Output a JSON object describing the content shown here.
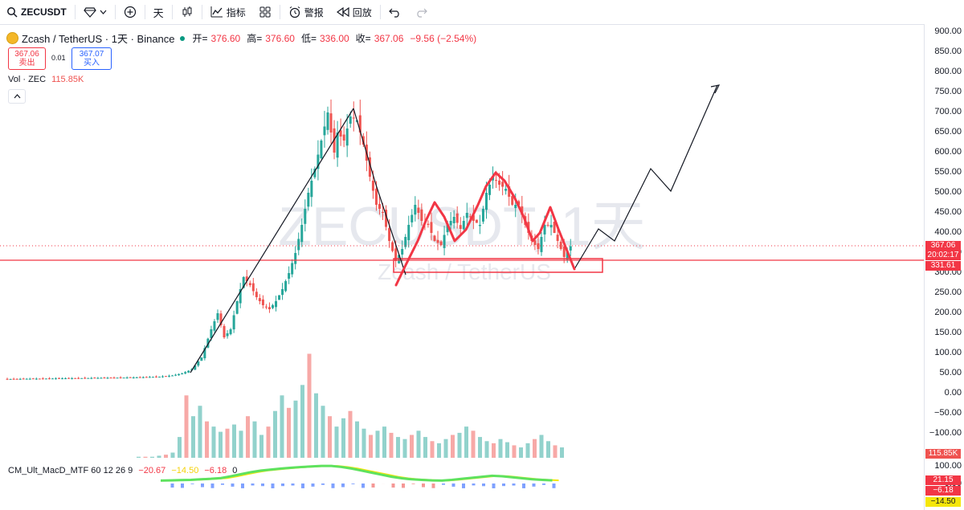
{
  "toolbar": {
    "symbol": "ZECUSDT",
    "interval": "天",
    "indicators_label": "指标",
    "alert_label": "警报",
    "replay_label": "回放"
  },
  "legend": {
    "pair": "Zcash / TetherUS · 1天 · Binance",
    "open_label": "开=",
    "open": "376.60",
    "high_label": "高=",
    "high": "376.60",
    "low_label": "低=",
    "low": "336.00",
    "close_label": "收=",
    "close": "367.06",
    "change": "−9.56 (−2.54%)"
  },
  "trade": {
    "sell_price": "367.06",
    "sell_label": "卖出",
    "spread": "0.01",
    "buy_price": "367.07",
    "buy_label": "买入"
  },
  "volume_legend": {
    "label": "Vol · ZEC",
    "value": "115.85K"
  },
  "macd_legend": {
    "name": "CM_Ult_MacD_MTF 60 12 26 9",
    "v1": "−20.67",
    "v2": "−14.50",
    "v3": "−6.18",
    "v4": "0"
  },
  "watermark": {
    "big": "ZECUSDT, 1天",
    "small": "Zcash / TetherUS"
  },
  "price_axis": {
    "ticks": [
      "900.00",
      "850.00",
      "800.00",
      "750.00",
      "700.00",
      "650.00",
      "600.00",
      "550.00",
      "500.00",
      "450.00",
      "400.00",
      "350.00",
      "300.00",
      "250.00",
      "200.00",
      "150.00",
      "100.00",
      "50.00",
      "0.00",
      "−50.00",
      "−100.00"
    ],
    "current_price": "367.06",
    "countdown": "20:02:17",
    "level_price": "331.61",
    "volume_tag": "115.85K",
    "macd_ticks": [
      "100.00",
      "0.00"
    ],
    "macd_tags": [
      "21.15",
      "−6.18",
      "−14.50"
    ]
  },
  "colors": {
    "up": "#26a69a",
    "down": "#ef5350",
    "drawing": "#f23645",
    "line": "#131722"
  },
  "chart_data": {
    "type": "candlestick",
    "symbol": "ZECUSDT",
    "interval": "1D",
    "ylim": [
      -100,
      900
    ],
    "last": {
      "open": 376.6,
      "high": 376.6,
      "low": 336.0,
      "close": 367.06
    },
    "level": 331.61,
    "price_path": [
      [
        0,
        36
      ],
      [
        10,
        37
      ],
      [
        20,
        38
      ],
      [
        30,
        39
      ],
      [
        40,
        40
      ],
      [
        48,
        42
      ],
      [
        52,
        45
      ],
      [
        55,
        50
      ],
      [
        58,
        60
      ],
      [
        61,
        90
      ],
      [
        64,
        160
      ],
      [
        66,
        200
      ],
      [
        68,
        140
      ],
      [
        70,
        160
      ],
      [
        72,
        230
      ],
      [
        74,
        290
      ],
      [
        76,
        270
      ],
      [
        78,
        240
      ],
      [
        80,
        220
      ],
      [
        82,
        210
      ],
      [
        84,
        230
      ],
      [
        86,
        260
      ],
      [
        88,
        300
      ],
      [
        90,
        350
      ],
      [
        92,
        420
      ],
      [
        94,
        500
      ],
      [
        96,
        560
      ],
      [
        98,
        630
      ],
      [
        100,
        700
      ],
      [
        102,
        600
      ],
      [
        103,
        650
      ],
      [
        105,
        630
      ],
      [
        107,
        690
      ],
      [
        109,
        680
      ],
      [
        111,
        620
      ],
      [
        113,
        540
      ],
      [
        115,
        470
      ],
      [
        117,
        450
      ],
      [
        119,
        380
      ],
      [
        121,
        330
      ],
      [
        123,
        360
      ],
      [
        125,
        420
      ],
      [
        127,
        470
      ],
      [
        129,
        430
      ],
      [
        131,
        420
      ],
      [
        133,
        380
      ],
      [
        135,
        370
      ],
      [
        137,
        420
      ],
      [
        139,
        440
      ],
      [
        141,
        410
      ],
      [
        143,
        450
      ],
      [
        145,
        430
      ],
      [
        147,
        420
      ],
      [
        149,
        500
      ],
      [
        151,
        540
      ],
      [
        153,
        520
      ],
      [
        155,
        510
      ],
      [
        157,
        470
      ],
      [
        159,
        470
      ],
      [
        161,
        420
      ],
      [
        163,
        380
      ],
      [
        165,
        360
      ],
      [
        167,
        420
      ],
      [
        169,
        420
      ],
      [
        171,
        380
      ],
      [
        173,
        340
      ],
      [
        175,
        367
      ]
    ],
    "volume_scale_max": 105,
    "volume": [
      1,
      1,
      1,
      2,
      3,
      5,
      20,
      60,
      40,
      50,
      35,
      30,
      25,
      28,
      32,
      26,
      40,
      35,
      22,
      30,
      45,
      60,
      48,
      55,
      70,
      100,
      62,
      50,
      40,
      30,
      38,
      45,
      35,
      28,
      22,
      26,
      30,
      24,
      20,
      18,
      22,
      26,
      20,
      16,
      14,
      18,
      22,
      24,
      30,
      26,
      20,
      16,
      14,
      18,
      15,
      12,
      10,
      14,
      18,
      22,
      16,
      12,
      10
    ],
    "macd": [
      5,
      6,
      7,
      8,
      10,
      12,
      15,
      22,
      30,
      38,
      44,
      48,
      52,
      55,
      58,
      60,
      62,
      62,
      58,
      52,
      44,
      36,
      28,
      20,
      14,
      10,
      8,
      6,
      5,
      8,
      12,
      16,
      20,
      24,
      22,
      18,
      14,
      10,
      8,
      6
    ]
  }
}
